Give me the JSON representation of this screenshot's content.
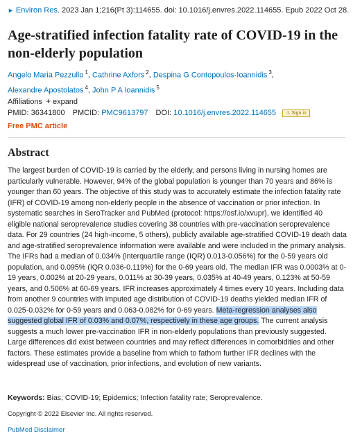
{
  "citation": {
    "journal": "Environ Res.",
    "details": "2023 Jan 1;216(Pt 3):114655. doi: 10.1016/j.envres.2022.114655. Epub 2022 Oct 28."
  },
  "title": "Age-stratified infection fatality rate of COVID-19 in the non-elderly population",
  "authors": [
    {
      "name": "Angelo Maria Pezzullo",
      "aff": "1"
    },
    {
      "name": "Cathrine Axfors",
      "aff": "2"
    },
    {
      "name": "Despina G Contopoulos-Ioannidis",
      "aff": "3"
    },
    {
      "name": "Alexandre Apostolatos",
      "aff": "4"
    },
    {
      "name": "John P A Ioannidis",
      "aff": "5"
    }
  ],
  "affiliations": {
    "label": "Affiliations",
    "expand_label": "expand"
  },
  "ids": {
    "pmid_label": "PMID:",
    "pmid": "36341800",
    "pmcid_label": "PMCID:",
    "pmcid": "PMC9613797",
    "doi_label": "DOI:",
    "doi": "10.1016/j.envres.2022.114655",
    "signin_label": "Sign in"
  },
  "free_pmc": "Free PMC article",
  "abstract": {
    "heading": "Abstract",
    "text_before": "The largest burden of COVID-19 is carried by the elderly, and persons living in nursing homes are particularly vulnerable. However, 94% of the global population is younger than 70 years and 86% is younger than 60 years. The objective of this study was to accurately estimate the infection fatality rate (IFR) of COVID-19 among non-elderly people in the absence of vaccination or prior infection. In systematic searches in SeroTracker and PubMed (protocol: https://osf.io/xvupr), we identified 40 eligible national seroprevalence studies covering 38 countries with pre-vaccination seroprevalence data. For 29 countries (24 high-income, 5 others), publicly available age-stratified COVID-19 death data and age-stratified seroprevalence information were available and were included in the primary analysis. The IFRs had a median of 0.034% (interquartile range (IQR) 0.013-0.056%) for the 0-59 years old population, and 0.095% (IQR 0.036-0.119%) for the 0-69 years old. The median IFR was 0.0003% at 0-19 years, 0.002% at 20-29 years, 0.011% at 30-39 years, 0.035% at 40-49 years, 0.123% at 50-59 years, and 0.506% at 60-69 years. IFR increases approximately 4 times every 10 years. Including data from another 9 countries with imputed age distribution of COVID-19 deaths yielded median IFR of 0.025-0.032% for 0-59 years and 0.063-0.082% for 0-69 years. ",
    "text_highlighted": "Meta-regression analyses also suggested global IFR of 0.03% and 0.07%, respectively in these age groups.",
    "text_after": " The current analysis suggests a much lower pre-vaccination IFR in non-elderly populations than previously suggested. Large differences did exist between countries and may reflect differences in comorbidities and other factors. These estimates provide a baseline from which to fathom further IFR declines with the widespread use of vaccination, prior infections, and evolution of new variants."
  },
  "keywords": {
    "label": "Keywords:",
    "text": "Bias; COVID-19; Epidemics; Infection fatality rate; Seroprevalence."
  },
  "copyright": "Copyright © 2022 Elsevier Inc. All rights reserved.",
  "disclaimer": "PubMed Disclaimer",
  "colors": {
    "link": "#0071bc",
    "free_pmc": "#d64e15",
    "highlight": "#b7d5f7"
  }
}
